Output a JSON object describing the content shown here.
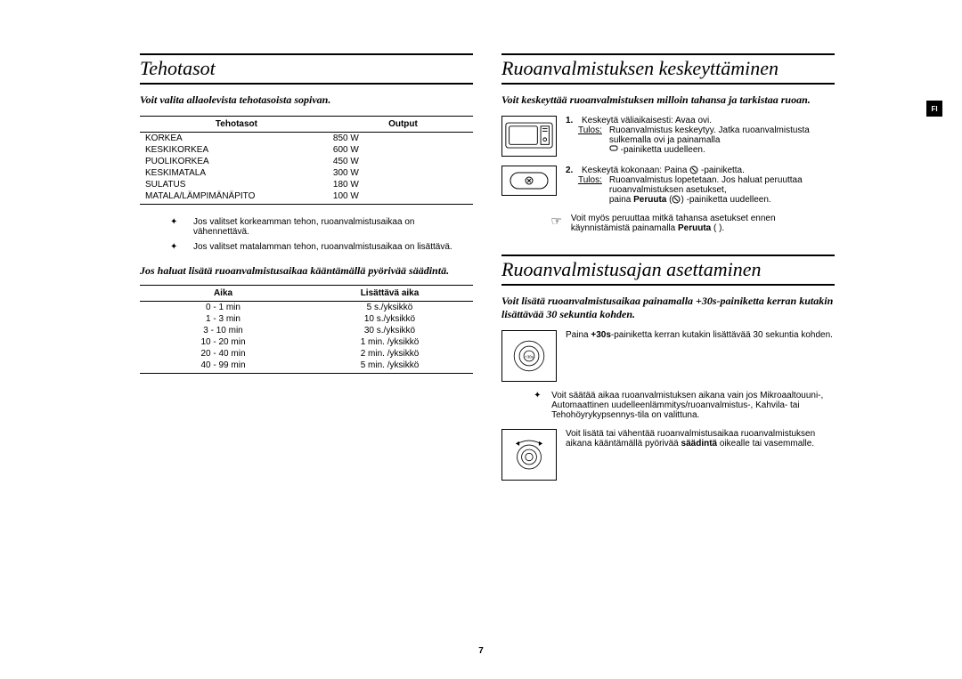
{
  "tab": "FI",
  "pageNumber": "7",
  "left": {
    "heading": "Tehotasot",
    "intro": "Voit valita allaolevista tehotasoista sopivan.",
    "table1": {
      "headers": [
        "Tehotasot",
        "Output"
      ],
      "rows": [
        [
          "KORKEA",
          "850 W"
        ],
        [
          "KESKIKORKEA",
          "600 W"
        ],
        [
          "PUOLIKORKEA",
          "450 W"
        ],
        [
          "KESKIMATALA",
          "300 W"
        ],
        [
          "SULATUS",
          "180 W"
        ],
        [
          "MATALA/LÄMPIMÄNÄPITO",
          "100 W"
        ]
      ]
    },
    "notes": [
      "Jos valitset korkeamman tehon, ruoanvalmistusaikaa on vähennettävä.",
      "Jos valitset matalamman tehon, ruoanvalmistusaikaa on lisättävä."
    ],
    "subhead": "Jos haluat lisätä ruoanvalmistusaikaa kääntämällä pyörivää säädintä.",
    "table2": {
      "headers": [
        "Aika",
        "Lisättävä aika"
      ],
      "rows": [
        [
          "0 - 1 min",
          "5 s./yksikkö"
        ],
        [
          "1 - 3 min",
          "10 s./yksikkö"
        ],
        [
          "3 - 10 min",
          "30 s./yksikkö"
        ],
        [
          "10 - 20 min",
          "1 min. /yksikkö"
        ],
        [
          "20 - 40 min",
          "2 min. /yksikkö"
        ],
        [
          "40 - 99 min",
          "5 min. /yksikkö"
        ]
      ]
    }
  },
  "right": {
    "heading1": "Ruoanvalmistuksen keskeyttäminen",
    "intro1": "Voit keskeyttää ruoanvalmistuksen milloin tahansa ja tarkistaa ruoan.",
    "steps": [
      {
        "num": "1.",
        "text": "Keskeytä väliaikaisesti: Avaa ovi.",
        "resultLabel": "Tulos:",
        "result": "Ruoanvalmistus keskeytyy. Jatka ruoanvalmistusta sulkemalla ovi ja painamalla",
        "result2": "-painiketta uudelleen."
      },
      {
        "num": "2.",
        "text": "Keskeytä kokonaan: Paina",
        "textSuffix": "-painiketta.",
        "resultLabel": "Tulos:",
        "result": "Ruoanvalmistus lopetetaan. Jos haluat peruuttaa ruoanvalmistuksen asetukset,",
        "result2pre": "paina ",
        "result2bold": "Peruuta",
        "result2post": " -painiketta uudelleen."
      }
    ],
    "note1pre": "Voit myös peruuttaa mitkä tahansa asetukset ennen käynnistämistä painamalla ",
    "note1bold": "Peruuta",
    "note1post": " ( ).",
    "heading2": "Ruoanvalmistusajan asettaminen",
    "intro2": "Voit lisätä ruoanvalmistusaikaa painamalla +30s-painiketta kerran kutakin lisättävää 30 sekuntia kohden.",
    "body2pre": "Paina ",
    "body2bold": "+30s",
    "body2post": "-painiketta kerran kutakin lisättävää 30 sekuntia kohden.",
    "note2": "Voit säätää aikaa ruoanvalmistuksen aikana vain jos Mikroaaltouuni-, Automaattinen uudelleenlämmitys/ruoanvalmistus-, Kahvila- tai Tehohöyrykypsennys-tila on valittuna.",
    "body3pre": "Voit lisätä tai vähentää ruoanvalmistusaikaa ruoanvalmistuksen aikana kääntämällä pyörivää ",
    "body3bold": "säädintä",
    "body3post": " oikealle tai vasemmalle."
  }
}
